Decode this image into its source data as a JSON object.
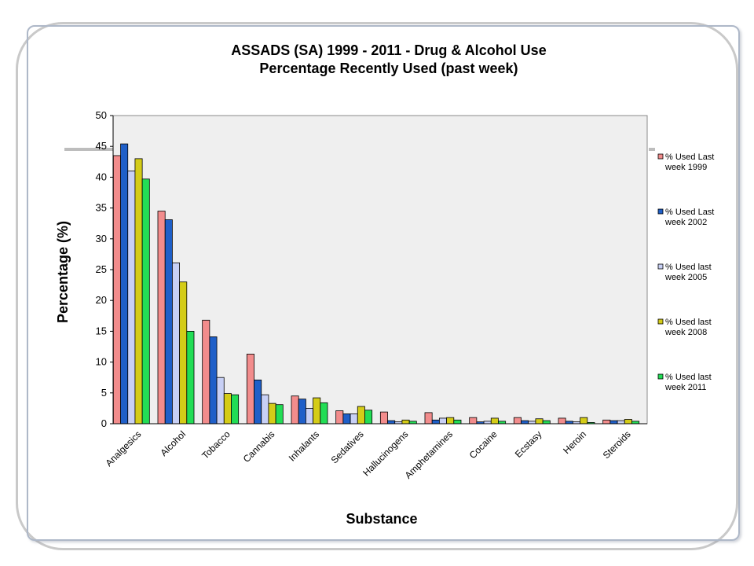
{
  "chart_data": {
    "type": "bar",
    "title": "ASSADS (SA) 1999 - 2011 - Drug & Alcohol Use",
    "subtitle": "Percentage Recently Used (past week)",
    "xlabel": "Substance",
    "ylabel": "Percentage (%)",
    "ylim": [
      0,
      50
    ],
    "yticks": [
      0,
      5,
      10,
      15,
      20,
      25,
      30,
      35,
      40,
      45,
      50
    ],
    "grid": false,
    "legend_position": "right",
    "categories": [
      "Analgesics",
      "Alcohol",
      "Tobacco",
      "Cannabis",
      "Inhalants",
      "Sedatives",
      "Hallucinogens",
      "Amphetamines",
      "Cocaine",
      "Ecstasy",
      "Heroin",
      "Steroids"
    ],
    "series": [
      {
        "name": "% Used Last week 1999",
        "legend_lines": [
          "% Used Last",
          "week 1999"
        ],
        "color": "#f28c8c",
        "values": [
          43.5,
          34.5,
          16.8,
          11.3,
          4.5,
          2.1,
          1.9,
          1.8,
          1.0,
          1.0,
          0.9,
          0.6
        ]
      },
      {
        "name": "% Used Last week 2002",
        "legend_lines": [
          "% Used Last",
          "week 2002"
        ],
        "color": "#1f5fc8",
        "values": [
          45.4,
          33.1,
          14.1,
          7.1,
          4.0,
          1.6,
          0.5,
          0.6,
          0.3,
          0.5,
          0.4,
          0.5
        ]
      },
      {
        "name": "% Used last week 2005",
        "legend_lines": [
          "% Used last",
          "week 2005"
        ],
        "color": "#c8d0f5",
        "values": [
          41.0,
          26.1,
          7.5,
          4.7,
          2.5,
          1.6,
          0.3,
          0.9,
          0.4,
          0.4,
          0.3,
          0.5
        ]
      },
      {
        "name": "% Used last week 2008",
        "legend_lines": [
          "% Used last",
          "week 2008"
        ],
        "color": "#d4cc18",
        "values": [
          43.0,
          23.0,
          4.9,
          3.3,
          4.2,
          2.8,
          0.6,
          1.0,
          0.9,
          0.8,
          1.0,
          0.7
        ]
      },
      {
        "name": "% Used last week 2011",
        "legend_lines": [
          "% Used last",
          "week 2011"
        ],
        "color": "#22dd55",
        "values": [
          39.7,
          15.0,
          4.7,
          3.1,
          3.4,
          2.2,
          0.4,
          0.6,
          0.4,
          0.5,
          0.2,
          0.4
        ]
      }
    ]
  }
}
